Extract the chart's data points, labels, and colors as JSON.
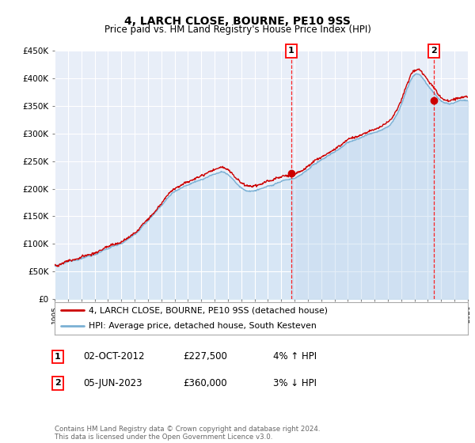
{
  "title": "4, LARCH CLOSE, BOURNE, PE10 9SS",
  "subtitle": "Price paid vs. HM Land Registry's House Price Index (HPI)",
  "legend_line1": "4, LARCH CLOSE, BOURNE, PE10 9SS (detached house)",
  "legend_line2": "HPI: Average price, detached house, South Kesteven",
  "annotation1_date": "02-OCT-2012",
  "annotation1_price": "£227,500",
  "annotation1_hpi": "4% ↑ HPI",
  "annotation2_date": "05-JUN-2023",
  "annotation2_price": "£360,000",
  "annotation2_hpi": "3% ↓ HPI",
  "footer": "Contains HM Land Registry data © Crown copyright and database right 2024.\nThis data is licensed under the Open Government Licence v3.0.",
  "xmin": 1995,
  "xmax": 2026,
  "ymin": 0,
  "ymax": 450000,
  "yticks": [
    0,
    50000,
    100000,
    150000,
    200000,
    250000,
    300000,
    350000,
    400000,
    450000
  ],
  "ytick_labels": [
    "£0",
    "£50K",
    "£100K",
    "£150K",
    "£200K",
    "£250K",
    "£300K",
    "£350K",
    "£400K",
    "£450K"
  ],
  "hpi_line_color": "#7ab0d4",
  "hpi_fill_color": "#d0e4f4",
  "hpi_fill_alpha": 0.7,
  "price_color": "#cc0000",
  "bg_color": "#ffffff",
  "plot_bg": "#e8eef8",
  "grid_color": "#ffffff",
  "marker1_x": 2012.75,
  "marker1_y": 227500,
  "marker2_x": 2023.42,
  "marker2_y": 360000,
  "title_fontsize": 10,
  "subtitle_fontsize": 8.5
}
